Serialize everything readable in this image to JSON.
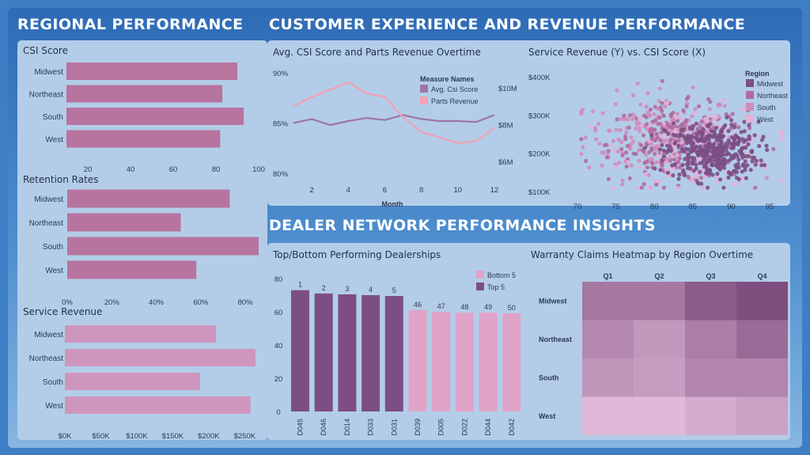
{
  "headers": {
    "regional": "REGIONAL PERFORMANCE",
    "customer": "CUSTOMER EXPERIENCE AND REVENUE PERFORMANCE",
    "dealer": "DEALER NETWORK PERFORMANCE INSIGHTS"
  },
  "colors": {
    "bar_pink": "#b7749f",
    "bar_pink_light": "#cf96bd",
    "line_csi": "#9e76a4",
    "line_parts": "#f4a0b5",
    "dot_midwest": "#7b4f86",
    "dot_northeast": "#b06a9d",
    "dot_south": "#cf8dba",
    "dot_west": "#e6afd4",
    "top5": "#7d4e83",
    "bottom5": "#e0a3c8"
  },
  "chart_data": [
    {
      "id": "csi",
      "type": "bar",
      "title": "CSI Score",
      "categories": [
        "Midwest",
        "Northeast",
        "South",
        "West"
      ],
      "values": [
        90,
        83,
        93,
        82
      ],
      "axis_min": 10,
      "axis_max": 100,
      "ticks": [
        20,
        40,
        60,
        80,
        100
      ],
      "tick_labels": [
        "20",
        "40",
        "60",
        "80",
        "100"
      ]
    },
    {
      "id": "retention",
      "type": "bar",
      "title": "Retention Rates",
      "categories": [
        "Midwest",
        "Northeast",
        "South",
        "West"
      ],
      "values": [
        0.73,
        0.51,
        0.86,
        0.58
      ],
      "axis_min": 0,
      "axis_max": 0.86,
      "ticks": [
        0,
        0.2,
        0.4,
        0.6,
        0.8
      ],
      "tick_labels": [
        "0%",
        "20%",
        "40%",
        "60%",
        "80%"
      ]
    },
    {
      "id": "service",
      "type": "bar",
      "title": "Service Revenue",
      "categories": [
        "Midwest",
        "Northeast",
        "South",
        "West"
      ],
      "values": [
        210000,
        265000,
        188000,
        258000
      ],
      "axis_min": 0,
      "axis_max": 265000,
      "ticks": [
        0,
        50000,
        100000,
        150000,
        200000,
        250000
      ],
      "tick_labels": [
        "$0K",
        "$50K",
        "$100K",
        "$150K",
        "$200K",
        "$250K"
      ]
    },
    {
      "id": "csi_parts",
      "type": "line",
      "title": "Avg. CSI Score and Parts Revenue Overtime",
      "xlabel": "Month",
      "x": [
        1,
        2,
        3,
        4,
        5,
        6,
        7,
        8,
        9,
        10,
        11,
        12
      ],
      "x_ticks": [
        2,
        4,
        6,
        8,
        10,
        12
      ],
      "legend_title": "Measure Names",
      "y_left": {
        "min": 79,
        "max": 90.5,
        "ticks": [
          80,
          85,
          90
        ],
        "tick_labels": [
          "80%",
          "85%",
          "90%"
        ]
      },
      "y_right": {
        "min": 5.4,
        "max": 10.6,
        "ticks": [
          6,
          8,
          10
        ],
        "tick_labels": [
          "$6M",
          "$8M",
          "$10M"
        ]
      },
      "series": [
        {
          "name": "Avg. Csi Score",
          "axis": "left",
          "values": [
            85.0,
            85.4,
            84.8,
            85.2,
            85.5,
            85.3,
            85.8,
            85.4,
            85.2,
            85.2,
            85.1,
            85.8
          ]
        },
        {
          "name": "Parts Revenue",
          "axis": "right",
          "values": [
            9.0,
            9.5,
            9.9,
            10.3,
            9.7,
            9.5,
            8.4,
            7.6,
            7.3,
            7.0,
            7.1,
            7.8
          ]
        }
      ]
    },
    {
      "id": "scatter",
      "type": "scatter",
      "title": "Service Revenue (Y) vs. CSI Score (X)",
      "legend_title": "Region",
      "regions": [
        "Midwest",
        "Northeast",
        "South",
        "West"
      ],
      "x_range": [
        68,
        97
      ],
      "y_range": [
        95000,
        405000
      ],
      "x_ticks": [
        70,
        75,
        80,
        85,
        90,
        95
      ],
      "x_tick_labels": [
        "70",
        "75",
        "80",
        "85",
        "90",
        "95"
      ],
      "y_ticks": [
        100000,
        200000,
        300000,
        400000
      ],
      "y_tick_labels": [
        "$100K",
        "$200K",
        "$300K",
        "$400K"
      ],
      "clusters": [
        {
          "region": "Midwest",
          "n": 380,
          "x_mean": 87.5,
          "x_sd": 3.0,
          "y_mean": 205000,
          "y_sd": 38000
        },
        {
          "region": "Northeast",
          "n": 230,
          "x_mean": 83.0,
          "x_sd": 4.5,
          "y_mean": 225000,
          "y_sd": 50000
        },
        {
          "region": "South",
          "n": 210,
          "x_mean": 81.0,
          "x_sd": 5.0,
          "y_mean": 245000,
          "y_sd": 55000
        },
        {
          "region": "West",
          "n": 130,
          "x_mean": 86.0,
          "x_sd": 5.0,
          "y_mean": 215000,
          "y_sd": 52000
        }
      ]
    },
    {
      "id": "dealers",
      "type": "bar",
      "title": "Top/Bottom Performing Dealerships",
      "categories": [
        "D045",
        "D046",
        "D014",
        "D033",
        "D031",
        "D039",
        "D005",
        "D022",
        "D044",
        "D042"
      ],
      "values": [
        73,
        71,
        70.5,
        70,
        69.5,
        61,
        60,
        59.5,
        59.5,
        59
      ],
      "ranks": [
        "1",
        "2",
        "3",
        "4",
        "5",
        "46",
        "47",
        "48",
        "49",
        "50"
      ],
      "groups": [
        "Top 5",
        "Top 5",
        "Top 5",
        "Top 5",
        "Top 5",
        "Bottom 5",
        "Bottom 5",
        "Bottom 5",
        "Bottom 5",
        "Bottom 5"
      ],
      "legend": [
        "Bottom 5",
        "Top 5"
      ],
      "y_range": [
        0,
        80
      ],
      "y_ticks": [
        0,
        20,
        40,
        60,
        80
      ],
      "y_tick_labels": [
        "0",
        "20",
        "40",
        "60",
        "80"
      ]
    },
    {
      "id": "heatmap",
      "type": "heatmap",
      "title": "Warranty Claims Heatmap by Region Overtime",
      "columns": [
        "Q1",
        "Q2",
        "Q3",
        "Q4"
      ],
      "rows": [
        "Midwest",
        "Northeast",
        "South",
        "West"
      ],
      "values": [
        [
          0.62,
          0.62,
          0.85,
          0.95
        ],
        [
          0.5,
          0.38,
          0.58,
          0.72
        ],
        [
          0.4,
          0.34,
          0.52,
          0.52
        ],
        [
          0.12,
          0.12,
          0.22,
          0.3
        ]
      ]
    }
  ]
}
